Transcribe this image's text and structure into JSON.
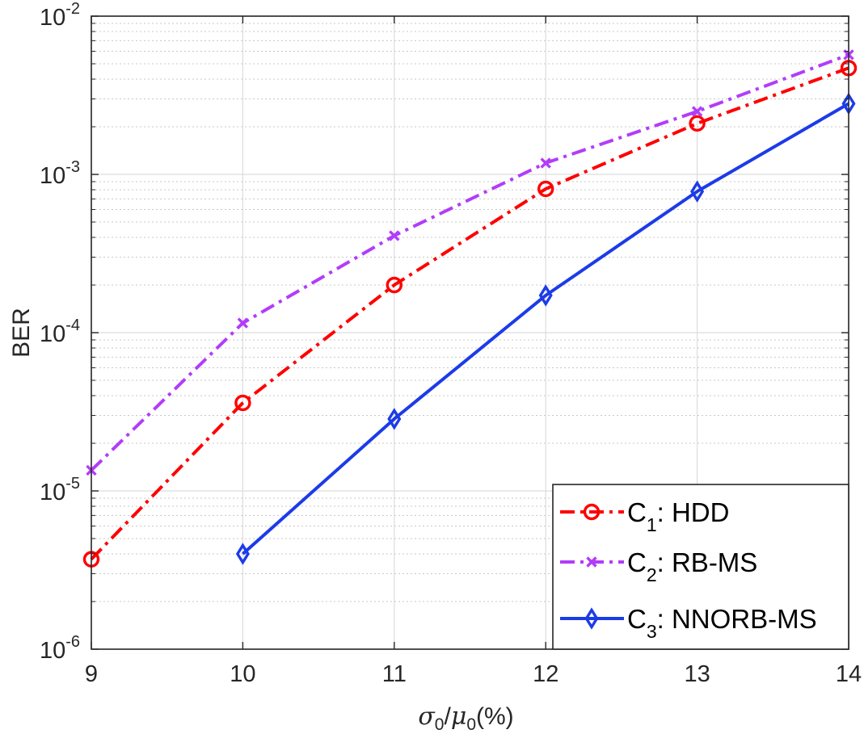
{
  "chart_data": {
    "type": "line",
    "xscale": "linear",
    "yscale": "log",
    "xlim": [
      9,
      14
    ],
    "ylim": [
      1e-06,
      0.01
    ],
    "grid": true,
    "minor_grid": true,
    "xlabel": "σ0/μ0(%)",
    "xlabel_parts": {
      "sym1": "σ",
      "sub1": "0",
      "slash": "/",
      "sym2": "μ",
      "sub2": "0",
      "suffix": "(%)"
    },
    "ylabel": "BER",
    "xticks": [
      9,
      10,
      11,
      12,
      13,
      14
    ],
    "xtick_labels": [
      "9",
      "10",
      "11",
      "12",
      "13",
      "14"
    ],
    "yticks": [
      1e-06,
      1e-05,
      0.0001,
      0.001,
      0.01
    ],
    "ytick_labels": [
      {
        "base": "10",
        "exp": "-6"
      },
      {
        "base": "10",
        "exp": "-5"
      },
      {
        "base": "10",
        "exp": "-4"
      },
      {
        "base": "10",
        "exp": "-3"
      },
      {
        "base": "10",
        "exp": "-2"
      }
    ],
    "legend_position": "bottom-right",
    "series": [
      {
        "name": "C1: HDD",
        "label_main": "C",
        "label_sub": "1",
        "label_rest": ": HDD",
        "color": "#ff0000",
        "line_style": "dash-dot",
        "marker": "circle",
        "x": [
          9,
          10,
          11,
          12,
          13,
          14
        ],
        "y": [
          3.7e-06,
          3.6e-05,
          0.0002,
          0.00081,
          0.0021,
          0.0047
        ]
      },
      {
        "name": "C2: RB-MS",
        "label_main": "C",
        "label_sub": "2",
        "label_rest": ": RB-MS",
        "color": "#b23cfa",
        "line_style": "dash-dot",
        "marker": "x",
        "x": [
          9,
          10,
          11,
          12,
          13,
          14
        ],
        "y": [
          1.35e-05,
          0.000115,
          0.00041,
          0.00118,
          0.0025,
          0.0057
        ]
      },
      {
        "name": "C3: NNORB-MS",
        "label_main": "C",
        "label_sub": "3",
        "label_rest": ": NNORB-MS",
        "color": "#1c3be8",
        "line_style": "solid",
        "marker": "diamond",
        "x": [
          10,
          11,
          12,
          13,
          14
        ],
        "y": [
          4e-06,
          2.85e-05,
          0.000172,
          0.00078,
          0.0028
        ]
      }
    ]
  }
}
